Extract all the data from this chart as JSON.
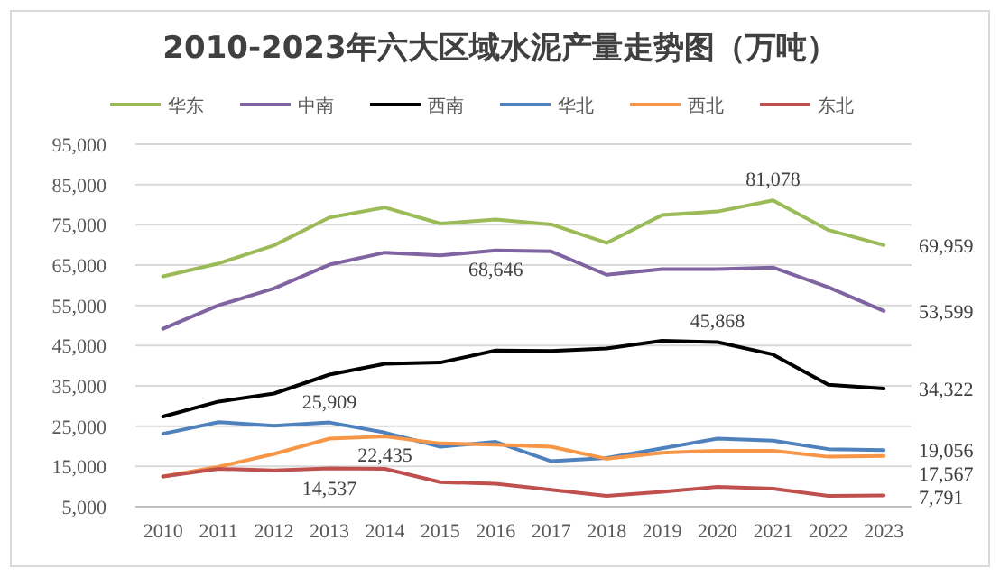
{
  "chart_data": {
    "type": "line",
    "title": "2010-2023年六大区域水泥产量走势图（万吨）",
    "categories": [
      "2010",
      "2011",
      "2012",
      "2013",
      "2014",
      "2015",
      "2016",
      "2017",
      "2018",
      "2019",
      "2020",
      "2021",
      "2022",
      "2023"
    ],
    "series": [
      {
        "name": "华东",
        "color": "#9bbb59",
        "values": [
          62200,
          65400,
          69900,
          76800,
          79300,
          75300,
          76300,
          75100,
          70500,
          77400,
          78300,
          81078,
          73700,
          69959
        ]
      },
      {
        "name": "中南",
        "color": "#8064a2",
        "values": [
          49200,
          55000,
          59200,
          65100,
          68100,
          67400,
          68646,
          68400,
          62600,
          64000,
          64000,
          64400,
          59500,
          53599
        ]
      },
      {
        "name": "西南",
        "color": "#000000",
        "values": [
          27400,
          31100,
          33100,
          37800,
          40500,
          40800,
          43800,
          43700,
          44300,
          46200,
          45868,
          42800,
          35300,
          34322
        ]
      },
      {
        "name": "华北",
        "color": "#4f81bd",
        "values": [
          23100,
          26000,
          25100,
          25909,
          23400,
          19900,
          21100,
          16300,
          17100,
          19500,
          21900,
          21400,
          19300,
          19056
        ]
      },
      {
        "name": "西北",
        "color": "#f79646",
        "values": [
          12500,
          14900,
          18100,
          21900,
          22435,
          20700,
          20400,
          19900,
          16900,
          18400,
          18900,
          18900,
          17400,
          17567
        ]
      },
      {
        "name": "东北",
        "color": "#c0504d",
        "values": [
          12500,
          14400,
          14000,
          14537,
          14400,
          11100,
          10700,
          9200,
          7700,
          8700,
          9900,
          9500,
          7700,
          7791
        ]
      }
    ],
    "annotations": [
      {
        "text": "81,078",
        "x": "2021",
        "y": 81078
      },
      {
        "text": "68,646",
        "x": "2016",
        "y": 68646
      },
      {
        "text": "45,868",
        "x": "2020",
        "y": 45868
      },
      {
        "text": "25,909",
        "x": "2013",
        "y": 25909
      },
      {
        "text": "22,435",
        "x": "2014",
        "y": 22435
      },
      {
        "text": "14,537",
        "x": "2013",
        "y": 14537
      },
      {
        "text": "69,959",
        "x": "2023",
        "y": 69959
      },
      {
        "text": "53,599",
        "x": "2023",
        "y": 53599
      },
      {
        "text": "34,322",
        "x": "2023",
        "y": 34322
      },
      {
        "text": "19,056",
        "x": "2023",
        "y": 19056
      },
      {
        "text": "17,567",
        "x": "2023",
        "y": 17567
      },
      {
        "text": "7,791",
        "x": "2023",
        "y": 7791
      }
    ],
    "ylim": [
      5000,
      95000
    ],
    "yticks": [
      {
        "value": 5000,
        "label": "5,000"
      },
      {
        "value": 15000,
        "label": "15,000"
      },
      {
        "value": 25000,
        "label": "25,000"
      },
      {
        "value": 35000,
        "label": "35,000"
      },
      {
        "value": 45000,
        "label": "45,000"
      },
      {
        "value": 55000,
        "label": "55,000"
      },
      {
        "value": 65000,
        "label": "65,000"
      },
      {
        "value": 75000,
        "label": "75,000"
      },
      {
        "value": 85000,
        "label": "85,000"
      },
      {
        "value": 95000,
        "label": "95,000"
      }
    ],
    "grid": "y",
    "legend": "top",
    "marker": "none",
    "line_style": "solid"
  }
}
